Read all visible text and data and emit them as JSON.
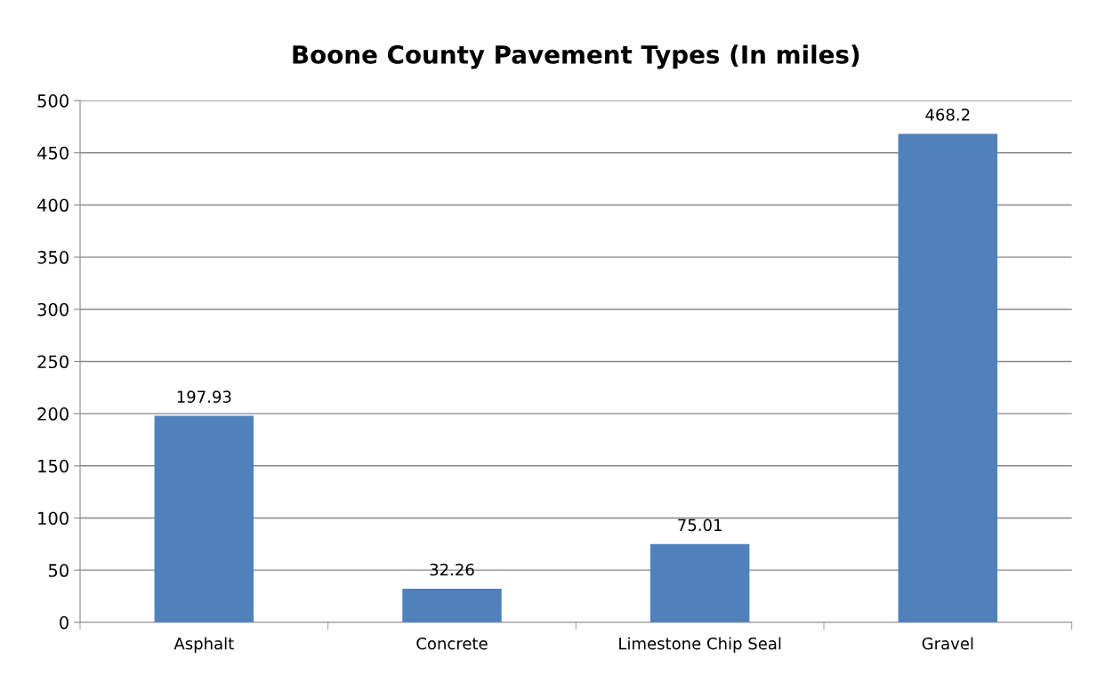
{
  "chart_data": {
    "type": "bar",
    "title": "Boone County Pavement Types (In miles)",
    "categories": [
      "Asphalt",
      "Concrete",
      "Limestone Chip Seal",
      "Gravel"
    ],
    "values": [
      197.93,
      32.26,
      75.01,
      468.2
    ],
    "color": "#4f81bd",
    "ylim": [
      0,
      500
    ],
    "yticks": [
      0,
      50,
      100,
      150,
      200,
      250,
      300,
      350,
      400,
      450,
      500
    ],
    "grid": "y",
    "legend": false,
    "data_labels": true
  }
}
